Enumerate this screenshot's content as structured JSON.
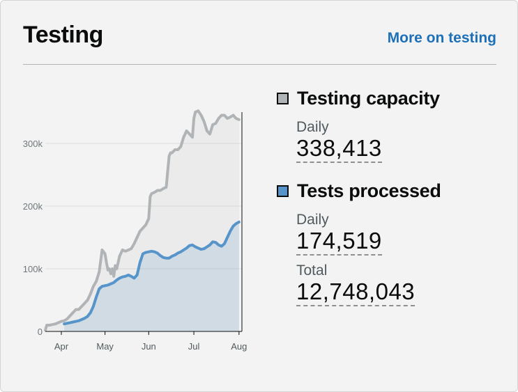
{
  "header": {
    "title": "Testing",
    "more_link": "More on testing"
  },
  "colors": {
    "capacity": "#b1b4b6",
    "capacity_swatch": "#b1b4b6",
    "processed": "#5694ca",
    "processed_swatch": "#5694ca",
    "link": "#1d70b8"
  },
  "metrics": {
    "capacity": {
      "label": "Testing capacity",
      "daily_label": "Daily",
      "daily_value": "338,413"
    },
    "processed": {
      "label": "Tests processed",
      "daily_label": "Daily",
      "daily_value": "174,519",
      "total_label": "Total",
      "total_value": "12,748,043"
    }
  },
  "chart_data": {
    "type": "area",
    "title": "",
    "xlabel": "",
    "ylabel": "",
    "ylim": [
      0,
      350000
    ],
    "yticks": [
      0,
      100000,
      200000,
      300000
    ],
    "ytick_labels": [
      "0",
      "100k",
      "200k",
      "300k"
    ],
    "xticks": [
      0,
      30,
      60,
      91,
      122
    ],
    "xtick_labels": [
      "Apr",
      "May",
      "Jun",
      "Jul",
      "Aug"
    ],
    "xlim": [
      -11,
      124
    ],
    "grid": true,
    "series": [
      {
        "name": "Testing capacity",
        "color": "#b1b4b6",
        "x": [
          -11,
          -10,
          -8,
          -6,
          -4,
          -2,
          0,
          2,
          4,
          6,
          8,
          10,
          12,
          14,
          16,
          18,
          20,
          22,
          24,
          26,
          28,
          30,
          31,
          32,
          33,
          34,
          35,
          36,
          37,
          38,
          40,
          42,
          44,
          46,
          48,
          50,
          52,
          54,
          56,
          58,
          60,
          61,
          62,
          64,
          66,
          68,
          70,
          72,
          74,
          75,
          76,
          78,
          80,
          82,
          84,
          86,
          88,
          90,
          91,
          92,
          94,
          96,
          98,
          100,
          102,
          104,
          106,
          108,
          110,
          112,
          114,
          116,
          118,
          120,
          122
        ],
        "y": [
          2000,
          10000,
          10000,
          11000,
          12000,
          14000,
          16000,
          17000,
          20000,
          25000,
          30000,
          35000,
          35000,
          40000,
          45000,
          50000,
          60000,
          72000,
          80000,
          95000,
          130000,
          124000,
          110000,
          98000,
          100000,
          92000,
          100000,
          88000,
          105000,
          100000,
          120000,
          130000,
          128000,
          130000,
          132000,
          140000,
          150000,
          160000,
          165000,
          170000,
          180000,
          215000,
          220000,
          222000,
          225000,
          225000,
          228000,
          230000,
          280000,
          285000,
          285000,
          290000,
          290000,
          295000,
          310000,
          320000,
          315000,
          310000,
          340000,
          350000,
          352000,
          345000,
          335000,
          320000,
          315000,
          330000,
          332000,
          340000,
          345000,
          345000,
          340000,
          342000,
          345000,
          340000,
          338000
        ]
      },
      {
        "name": "Tests processed",
        "color": "#5694ca",
        "x": [
          2,
          4,
          6,
          8,
          10,
          12,
          14,
          16,
          18,
          20,
          22,
          24,
          26,
          28,
          30,
          32,
          34,
          36,
          38,
          40,
          42,
          44,
          46,
          48,
          50,
          52,
          54,
          56,
          58,
          60,
          62,
          64,
          66,
          68,
          70,
          72,
          74,
          76,
          78,
          80,
          82,
          84,
          86,
          88,
          90,
          92,
          94,
          96,
          98,
          100,
          102,
          104,
          106,
          108,
          110,
          112,
          114,
          116,
          118,
          120,
          122
        ],
        "y": [
          12000,
          13000,
          14000,
          15000,
          16000,
          17000,
          19000,
          21000,
          24000,
          30000,
          40000,
          55000,
          68000,
          72000,
          73000,
          74000,
          76000,
          78000,
          82000,
          85000,
          87000,
          88000,
          90000,
          88000,
          85000,
          90000,
          110000,
          124000,
          126000,
          127000,
          128000,
          127000,
          125000,
          121000,
          118000,
          117000,
          117000,
          120000,
          122000,
          125000,
          127000,
          130000,
          133000,
          137000,
          138000,
          135000,
          133000,
          131000,
          132000,
          135000,
          138000,
          143000,
          142000,
          138000,
          136000,
          140000,
          150000,
          160000,
          168000,
          172000,
          174519
        ]
      }
    ]
  }
}
